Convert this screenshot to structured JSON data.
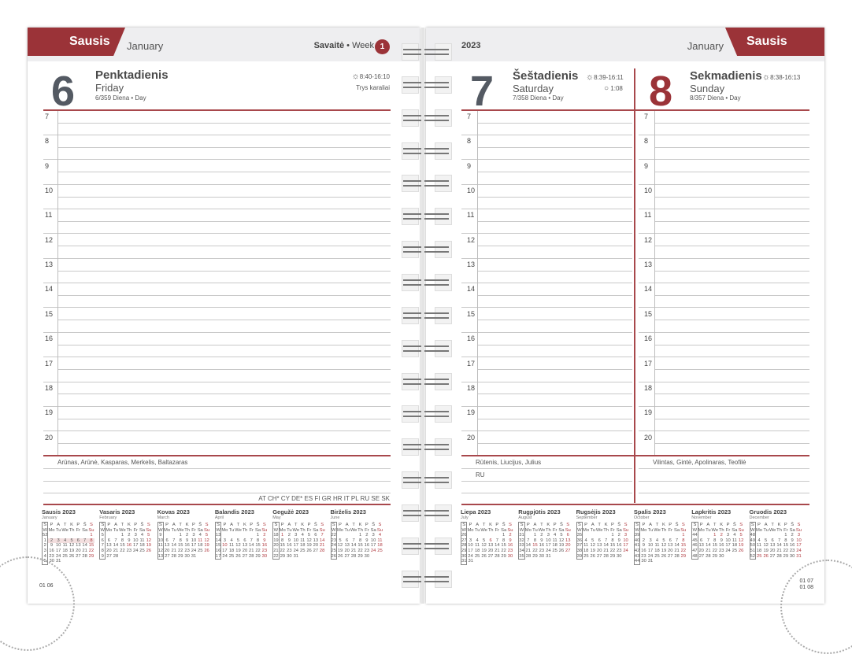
{
  "left": {
    "month_lt": "Sausis",
    "month_en": "January",
    "week_label_lt": "Savaitė",
    "week_label_en": "Week",
    "week_number": "1",
    "day": {
      "number": "6",
      "name_lt": "Penktadienis",
      "name_en": "Friday",
      "info": "6/359  Diena • Day",
      "sun": "8:40-16:10",
      "note": "Trys karaliai",
      "names": "Arūnas, Arūnė, Kasparas, Merkelis, Baltazaras",
      "holiday_codes": "AT CH* CY DE* ES FI GR HR IT PL RU SE SK"
    },
    "footer": "01 06"
  },
  "right": {
    "year": "2023",
    "month_lt": "Sausis",
    "month_en": "January",
    "day7": {
      "number": "7",
      "name_lt": "Šeštadienis",
      "name_en": "Saturday",
      "info": "7/358  Diena • Day",
      "sun": "8:39-16:11",
      "moon": "1:08",
      "names": "Rūtenis, Liucijus, Julius",
      "holiday_codes": "RU"
    },
    "day8": {
      "number": "8",
      "name_lt": "Sekmadienis",
      "name_en": "Sunday",
      "info": "8/357  Diena • Day",
      "sun": "8:38-16:13",
      "names": "Vilintas, Gintė, Apolinaras, Teofilė"
    },
    "footer": [
      "01 07",
      "01 08"
    ]
  },
  "hours": [
    "7",
    "8",
    "9",
    "10",
    "11",
    "12",
    "13",
    "14",
    "15",
    "16",
    "17",
    "18",
    "19",
    "20"
  ],
  "colors": {
    "accent": "#9b3338",
    "band": "#eeeef0"
  },
  "icons": {
    "sun": "sun-icon",
    "moon": "moon-icon"
  },
  "cal_header": {
    "lt": [
      "S",
      "P",
      "A",
      "T",
      "K",
      "P",
      "Š",
      "S"
    ],
    "en": [
      "W",
      "Mo",
      "Tu",
      "We",
      "Th",
      "Fr",
      "Sa",
      "Su"
    ]
  },
  "calendars": [
    {
      "title": "Sausis 2023",
      "en": "January",
      "current_week": 1,
      "red": [
        1,
        8,
        15,
        22,
        29
      ],
      "weeks": [
        [
          52,
          0,
          0,
          0,
          0,
          0,
          0,
          1
        ],
        [
          1,
          2,
          3,
          4,
          5,
          6,
          7,
          8
        ],
        [
          2,
          9,
          10,
          11,
          12,
          13,
          14,
          15
        ],
        [
          3,
          16,
          17,
          18,
          19,
          20,
          21,
          22
        ],
        [
          4,
          23,
          24,
          25,
          26,
          27,
          28,
          29
        ],
        [
          5,
          30,
          31,
          0,
          0,
          0,
          0,
          0
        ]
      ]
    },
    {
      "title": "Vasaris 2023",
      "en": "February",
      "red": [
        5,
        12,
        16,
        19,
        26
      ],
      "weeks": [
        [
          5,
          0,
          0,
          1,
          2,
          3,
          4,
          5
        ],
        [
          6,
          6,
          7,
          8,
          9,
          10,
          11,
          12
        ],
        [
          7,
          13,
          14,
          15,
          16,
          17,
          18,
          19
        ],
        [
          8,
          20,
          21,
          22,
          23,
          24,
          25,
          26
        ],
        [
          9,
          27,
          28,
          0,
          0,
          0,
          0,
          0
        ]
      ]
    },
    {
      "title": "Kovas 2023",
      "en": "March",
      "red": [
        5,
        11,
        12,
        19,
        26
      ],
      "weeks": [
        [
          9,
          0,
          0,
          1,
          2,
          3,
          4,
          5
        ],
        [
          10,
          6,
          7,
          8,
          9,
          10,
          11,
          12
        ],
        [
          11,
          13,
          14,
          15,
          16,
          17,
          18,
          19
        ],
        [
          12,
          20,
          21,
          22,
          23,
          24,
          25,
          26
        ],
        [
          13,
          27,
          28,
          29,
          30,
          31,
          0,
          0
        ]
      ]
    },
    {
      "title": "Balandis 2023",
      "en": "April",
      "red": [
        2,
        9,
        10,
        16,
        23,
        30
      ],
      "weeks": [
        [
          13,
          0,
          0,
          0,
          0,
          0,
          1,
          2
        ],
        [
          14,
          3,
          4,
          5,
          6,
          7,
          8,
          9
        ],
        [
          15,
          10,
          11,
          12,
          13,
          14,
          15,
          16
        ],
        [
          16,
          17,
          18,
          19,
          20,
          21,
          22,
          23
        ],
        [
          17,
          24,
          25,
          26,
          27,
          28,
          29,
          30
        ]
      ]
    },
    {
      "title": "Gegužė 2023",
      "en": "May",
      "red": [
        1,
        7,
        14,
        21,
        28
      ],
      "weeks": [
        [
          18,
          1,
          2,
          3,
          4,
          5,
          6,
          7
        ],
        [
          19,
          8,
          9,
          10,
          11,
          12,
          13,
          14
        ],
        [
          20,
          15,
          16,
          17,
          18,
          19,
          20,
          21
        ],
        [
          21,
          22,
          23,
          24,
          25,
          26,
          27,
          28
        ],
        [
          22,
          29,
          30,
          31,
          0,
          0,
          0,
          0
        ]
      ]
    },
    {
      "title": "Birželis 2023",
      "en": "June",
      "red": [
        4,
        11,
        18,
        24,
        25
      ],
      "weeks": [
        [
          22,
          0,
          0,
          0,
          1,
          2,
          3,
          4
        ],
        [
          23,
          5,
          6,
          7,
          8,
          9,
          10,
          11
        ],
        [
          24,
          12,
          13,
          14,
          15,
          16,
          17,
          18
        ],
        [
          25,
          19,
          20,
          21,
          22,
          23,
          24,
          25
        ],
        [
          26,
          26,
          27,
          28,
          29,
          30,
          0,
          0
        ]
      ]
    },
    {
      "title": "Liepa 2023",
      "en": "July",
      "red": [
        2,
        6,
        9,
        16,
        23,
        30
      ],
      "weeks": [
        [
          26,
          0,
          0,
          0,
          0,
          0,
          1,
          2
        ],
        [
          27,
          3,
          4,
          5,
          6,
          7,
          8,
          9
        ],
        [
          28,
          10,
          11,
          12,
          13,
          14,
          15,
          16
        ],
        [
          29,
          17,
          18,
          19,
          20,
          21,
          22,
          23
        ],
        [
          30,
          24,
          25,
          26,
          27,
          28,
          29,
          30
        ],
        [
          31,
          31,
          0,
          0,
          0,
          0,
          0,
          0
        ]
      ]
    },
    {
      "title": "Rugpjūtis 2023",
      "en": "August",
      "red": [
        6,
        13,
        15,
        20,
        27
      ],
      "weeks": [
        [
          31,
          0,
          1,
          2,
          3,
          4,
          5,
          6
        ],
        [
          32,
          7,
          8,
          9,
          10,
          11,
          12,
          13
        ],
        [
          33,
          14,
          15,
          16,
          17,
          18,
          19,
          20
        ],
        [
          34,
          21,
          22,
          23,
          24,
          25,
          26,
          27
        ],
        [
          35,
          28,
          29,
          30,
          31,
          0,
          0,
          0
        ]
      ]
    },
    {
      "title": "Rugsėjis 2023",
      "en": "September",
      "red": [
        3,
        10,
        17,
        24
      ],
      "weeks": [
        [
          35,
          0,
          0,
          0,
          0,
          1,
          2,
          3
        ],
        [
          36,
          4,
          5,
          6,
          7,
          8,
          9,
          10
        ],
        [
          37,
          11,
          12,
          13,
          14,
          15,
          16,
          17
        ],
        [
          38,
          18,
          19,
          20,
          21,
          22,
          23,
          24
        ],
        [
          39,
          25,
          26,
          27,
          28,
          29,
          30,
          0
        ]
      ]
    },
    {
      "title": "Spalis 2023",
      "en": "October",
      "red": [
        1,
        8,
        15,
        22,
        29
      ],
      "weeks": [
        [
          39,
          0,
          0,
          0,
          0,
          0,
          0,
          1
        ],
        [
          40,
          2,
          3,
          4,
          5,
          6,
          7,
          8
        ],
        [
          41,
          9,
          10,
          11,
          12,
          13,
          14,
          15
        ],
        [
          42,
          16,
          17,
          18,
          19,
          20,
          21,
          22
        ],
        [
          43,
          23,
          24,
          25,
          26,
          27,
          28,
          29
        ],
        [
          44,
          30,
          31,
          0,
          0,
          0,
          0,
          0
        ]
      ]
    },
    {
      "title": "Lapkritis 2023",
      "en": "November",
      "red": [
        1,
        2,
        5,
        12,
        19,
        26
      ],
      "weeks": [
        [
          44,
          0,
          0,
          1,
          2,
          3,
          4,
          5
        ],
        [
          45,
          6,
          7,
          8,
          9,
          10,
          11,
          12
        ],
        [
          46,
          13,
          14,
          15,
          16,
          17,
          18,
          19
        ],
        [
          47,
          20,
          21,
          22,
          23,
          24,
          25,
          26
        ],
        [
          48,
          27,
          28,
          29,
          30,
          0,
          0,
          0
        ]
      ]
    },
    {
      "title": "Gruodis 2023",
      "en": "December",
      "red": [
        3,
        10,
        17,
        24,
        25,
        26,
        31
      ],
      "weeks": [
        [
          48,
          0,
          0,
          0,
          0,
          1,
          2,
          3
        ],
        [
          49,
          4,
          5,
          6,
          7,
          8,
          9,
          10
        ],
        [
          50,
          11,
          12,
          13,
          14,
          15,
          16,
          17
        ],
        [
          51,
          18,
          19,
          20,
          21,
          22,
          23,
          24
        ],
        [
          52,
          25,
          26,
          27,
          28,
          29,
          30,
          31
        ]
      ]
    }
  ]
}
